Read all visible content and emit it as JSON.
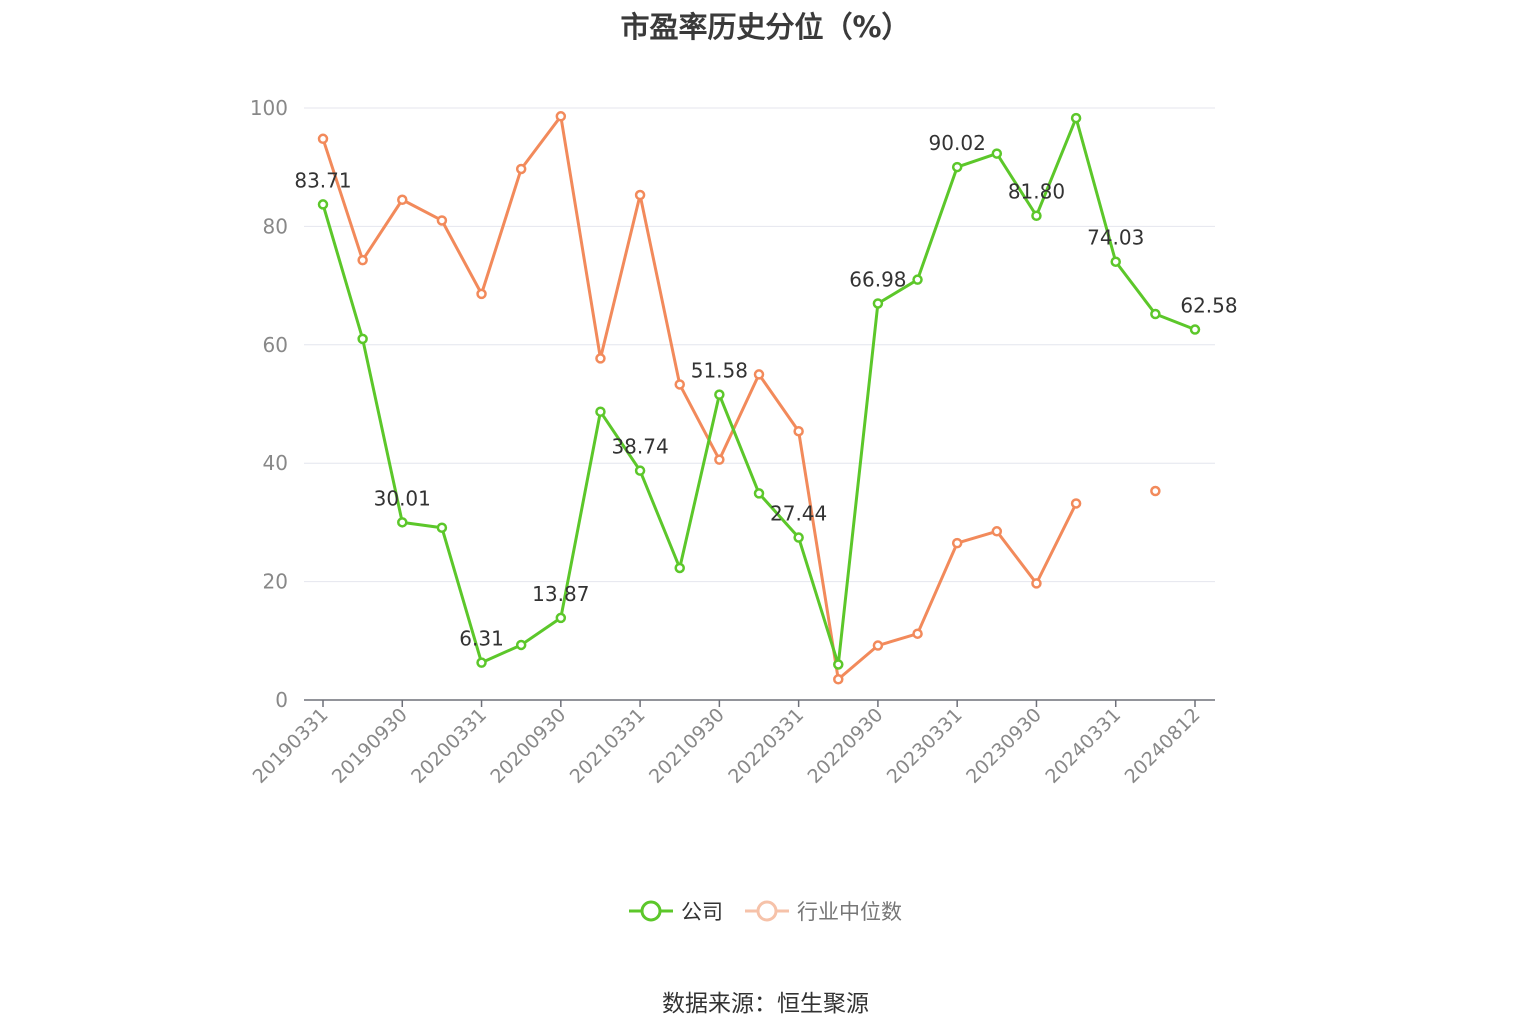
{
  "colors": {
    "company": "#5cc72a",
    "industry": "#f28a5b",
    "grid": "#e4e6ee",
    "axis": "#6e7079",
    "text": "#333333"
  },
  "chart_data": {
    "type": "line",
    "title": "市盈率历史分位（%）",
    "ylim": [
      0,
      100
    ],
    "y_ticks": [
      "0",
      "20",
      "40",
      "60",
      "80",
      "100"
    ],
    "x_tick_labels": [
      "20190331",
      "20190930",
      "20200331",
      "20200930",
      "20210331",
      "20210930",
      "20220331",
      "20220930",
      "20230331",
      "20230930",
      "20240331",
      "20240812"
    ],
    "x_positions": 23,
    "series": [
      {
        "name": "公司",
        "values": [
          83.71,
          61.0,
          30.01,
          29.1,
          6.31,
          9.3,
          13.87,
          48.7,
          38.74,
          22.3,
          51.58,
          34.9,
          27.44,
          6.0,
          66.98,
          71.0,
          90.02,
          92.3,
          81.8,
          98.3,
          74.03,
          65.2,
          62.58
        ],
        "data_labels": [
          {
            "index": 0,
            "text": "83.71"
          },
          {
            "index": 2,
            "text": "30.01"
          },
          {
            "index": 4,
            "text": "6.31"
          },
          {
            "index": 6,
            "text": "13.87"
          },
          {
            "index": 8,
            "text": "38.74"
          },
          {
            "index": 10,
            "text": "51.58"
          },
          {
            "index": 12,
            "text": "27.44"
          },
          {
            "index": 14,
            "text": "66.98"
          },
          {
            "index": 16,
            "text": "90.02"
          },
          {
            "index": 18,
            "text": "81.80"
          },
          {
            "index": 20,
            "text": "74.03"
          },
          {
            "index": 22,
            "text": "62.58"
          }
        ]
      },
      {
        "name": "行业中位数",
        "values": [
          94.8,
          74.3,
          84.5,
          81.0,
          68.6,
          89.7,
          98.6,
          57.7,
          85.3,
          53.3,
          40.6,
          55.0,
          45.4,
          3.5,
          9.2,
          11.2,
          26.5,
          28.5,
          19.7,
          33.2,
          null,
          35.3,
          null
        ]
      }
    ],
    "legend": [
      "公司",
      "行业中位数"
    ],
    "grid": true,
    "legend_position": "bottom-center"
  },
  "source_text": "数据来源：恒生聚源"
}
